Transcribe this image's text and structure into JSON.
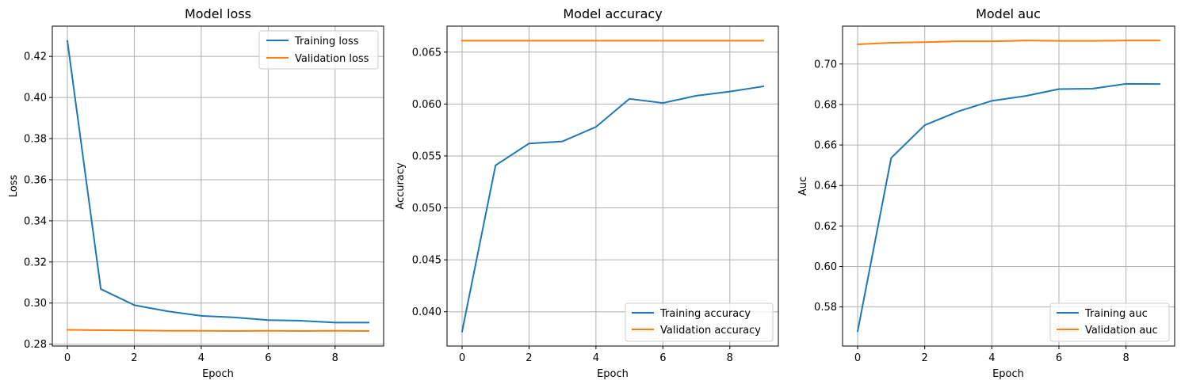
{
  "colors": {
    "training": "#1f77b4",
    "validation": "#ff7f0e",
    "grid": "#b0b0b0",
    "axes": "#000000"
  },
  "chart_data": [
    {
      "type": "line",
      "title": "Model loss",
      "xlabel": "Epoch",
      "ylabel": "Loss",
      "xlim": [
        -0.45,
        9.45
      ],
      "ylim": [
        0.2791,
        0.4347
      ],
      "xticks": [
        0,
        2,
        4,
        6,
        8
      ],
      "yticks": [
        0.28,
        0.3,
        0.32,
        0.34,
        0.36,
        0.38,
        0.4,
        0.42
      ],
      "ytick_labels": [
        "0.28",
        "0.30",
        "0.32",
        "0.34",
        "0.36",
        "0.38",
        "0.40",
        "0.42"
      ],
      "grid": true,
      "legend_position": "top-right",
      "x": [
        0,
        1,
        2,
        3,
        4,
        5,
        6,
        7,
        8,
        9
      ],
      "series": [
        {
          "name": "Training loss",
          "color": "#1f77b4",
          "values": [
            0.4275,
            0.3068,
            0.299,
            0.296,
            0.2938,
            0.293,
            0.2917,
            0.2914,
            0.2905,
            0.2905
          ]
        },
        {
          "name": "Validation loss",
          "color": "#ff7f0e",
          "values": [
            0.287,
            0.2868,
            0.2867,
            0.2865,
            0.2865,
            0.2864,
            0.2865,
            0.2864,
            0.2865,
            0.2864
          ]
        }
      ]
    },
    {
      "type": "line",
      "title": "Model accuracy",
      "xlabel": "Epoch",
      "ylabel": "Accuracy",
      "xlim": [
        -0.45,
        9.45
      ],
      "ylim": [
        0.0367,
        0.0675
      ],
      "xticks": [
        0,
        2,
        4,
        6,
        8
      ],
      "yticks": [
        0.04,
        0.045,
        0.05,
        0.055,
        0.06,
        0.065
      ],
      "ytick_labels": [
        "0.040",
        "0.045",
        "0.050",
        "0.055",
        "0.060",
        "0.065"
      ],
      "grid": true,
      "legend_position": "bottom-right",
      "x": [
        0,
        1,
        2,
        3,
        4,
        5,
        6,
        7,
        8,
        9
      ],
      "series": [
        {
          "name": "Training accuracy",
          "color": "#1f77b4",
          "values": [
            0.0381,
            0.0541,
            0.0562,
            0.0564,
            0.0578,
            0.0605,
            0.0601,
            0.0608,
            0.0612,
            0.0617
          ]
        },
        {
          "name": "Validation accuracy",
          "color": "#ff7f0e",
          "values": [
            0.0661,
            0.0661,
            0.0661,
            0.0661,
            0.0661,
            0.0661,
            0.0661,
            0.0661,
            0.0661,
            0.0661
          ]
        }
      ]
    },
    {
      "type": "line",
      "title": "Model auc",
      "xlabel": "Epoch",
      "ylabel": "Auc",
      "xlim": [
        -0.45,
        9.45
      ],
      "ylim": [
        0.5607,
        0.7187
      ],
      "xticks": [
        0,
        2,
        4,
        6,
        8
      ],
      "yticks": [
        0.58,
        0.6,
        0.62,
        0.64,
        0.66,
        0.68,
        0.7
      ],
      "ytick_labels": [
        "0.58",
        "0.60",
        "0.62",
        "0.64",
        "0.66",
        "0.68",
        "0.70"
      ],
      "grid": true,
      "legend_position": "bottom-right",
      "x": [
        0,
        1,
        2,
        3,
        4,
        5,
        6,
        7,
        8,
        9
      ],
      "series": [
        {
          "name": "Training auc",
          "color": "#1f77b4",
          "values": [
            0.568,
            0.6536,
            0.6698,
            0.6766,
            0.6818,
            0.6842,
            0.6876,
            0.6878,
            0.6902,
            0.6901
          ]
        },
        {
          "name": "Validation auc",
          "color": "#ff7f0e",
          "values": [
            0.7097,
            0.7105,
            0.7108,
            0.7112,
            0.7112,
            0.7116,
            0.7114,
            0.7114,
            0.7116,
            0.7116
          ]
        }
      ]
    }
  ]
}
